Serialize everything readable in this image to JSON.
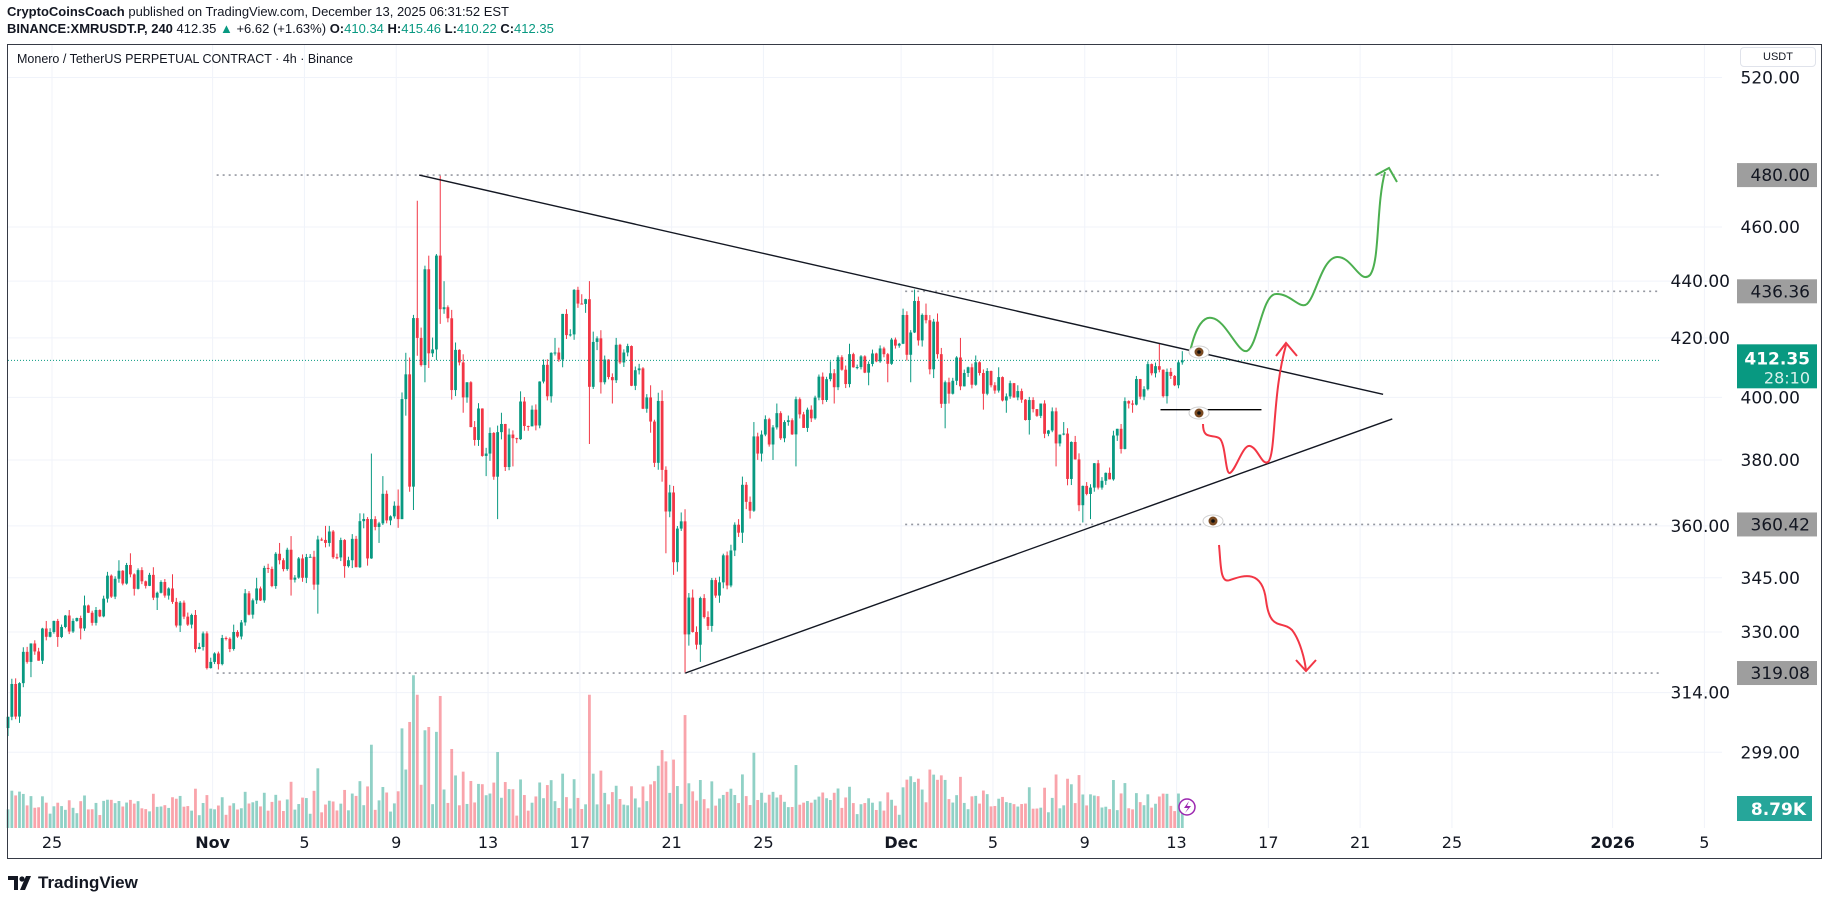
{
  "header": {
    "author": "CryptoCoinsCoach",
    "published": "published on TradingView.com, December 13, 2025 06:31:52 EST",
    "symbol": "BINANCE:XMRUSDT.P, 240",
    "last": "412.35",
    "change": "+6.62 (+1.63%)",
    "o_label": "O:",
    "o": "410.34",
    "h_label": "H:",
    "h": "415.46",
    "l_label": "L:",
    "l": "410.22",
    "c_label": "C:",
    "c": "412.35"
  },
  "legend": "Monero / TetherUS PERPETUAL CONTRACT · 4h · Binance",
  "currency_button": "USDT",
  "brand": "TradingView",
  "colors": {
    "up": "#089981",
    "down": "#f23645",
    "badge": "#9e9e9e",
    "bull_path": "#4caf50",
    "bear_path": "#f23645",
    "volume_badge": "#26a69a"
  },
  "chart_data": {
    "type": "candlestick",
    "interval": "4h",
    "scale": "log",
    "ylim": [
      292,
      525
    ],
    "y_ticks": [
      "520.00",
      "460.00",
      "440.00",
      "420.00",
      "400.00",
      "380.00",
      "360.00",
      "345.00",
      "330.00",
      "314.00",
      "299.00"
    ],
    "x_ticks": [
      {
        "label": "25",
        "date": "2025-10-25"
      },
      {
        "label": "Nov",
        "date": "2025-11-01",
        "bold": true
      },
      {
        "label": "5",
        "date": "2025-11-05"
      },
      {
        "label": "9",
        "date": "2025-11-09"
      },
      {
        "label": "13",
        "date": "2025-11-13"
      },
      {
        "label": "17",
        "date": "2025-11-17"
      },
      {
        "label": "21",
        "date": "2025-11-21"
      },
      {
        "label": "25",
        "date": "2025-11-25"
      },
      {
        "label": "Dec",
        "date": "2025-12-01",
        "bold": true
      },
      {
        "label": "5",
        "date": "2025-12-05"
      },
      {
        "label": "9",
        "date": "2025-12-09"
      },
      {
        "label": "13",
        "date": "2025-12-13"
      },
      {
        "label": "17",
        "date": "2025-12-17"
      },
      {
        "label": "21",
        "date": "2025-12-21"
      },
      {
        "label": "25",
        "date": "2025-12-25"
      },
      {
        "label": "2026",
        "date": "2026-01-01",
        "bold": true
      },
      {
        "label": "5",
        "date": "2026-01-05"
      }
    ],
    "daily": [
      {
        "d": "2025-10-23",
        "o": 305,
        "h": 326,
        "l": 303,
        "c": 322
      },
      {
        "d": "2025-10-24",
        "o": 322,
        "h": 333,
        "l": 318,
        "c": 330
      },
      {
        "d": "2025-10-25",
        "o": 330,
        "h": 336,
        "l": 326,
        "c": 333
      },
      {
        "d": "2025-10-26",
        "o": 333,
        "h": 340,
        "l": 328,
        "c": 336
      },
      {
        "d": "2025-10-27",
        "o": 336,
        "h": 350,
        "l": 334,
        "c": 347
      },
      {
        "d": "2025-10-28",
        "o": 347,
        "h": 352,
        "l": 340,
        "c": 344
      },
      {
        "d": "2025-10-29",
        "o": 344,
        "h": 348,
        "l": 336,
        "c": 340
      },
      {
        "d": "2025-10-30",
        "o": 340,
        "h": 346,
        "l": 330,
        "c": 332
      },
      {
        "d": "2025-10-31",
        "o": 332,
        "h": 336,
        "l": 320,
        "c": 322
      },
      {
        "d": "2025-11-01",
        "o": 322,
        "h": 332,
        "l": 320,
        "c": 330
      },
      {
        "d": "2025-11-02",
        "o": 330,
        "h": 345,
        "l": 328,
        "c": 342
      },
      {
        "d": "2025-11-03",
        "o": 342,
        "h": 355,
        "l": 338,
        "c": 350
      },
      {
        "d": "2025-11-04",
        "o": 350,
        "h": 357,
        "l": 340,
        "c": 345
      },
      {
        "d": "2025-11-05",
        "o": 345,
        "h": 360,
        "l": 335,
        "c": 355
      },
      {
        "d": "2025-11-06",
        "o": 355,
        "h": 360,
        "l": 345,
        "c": 350
      },
      {
        "d": "2025-11-07",
        "o": 350,
        "h": 382,
        "l": 348,
        "c": 362
      },
      {
        "d": "2025-11-08",
        "o": 362,
        "h": 375,
        "l": 355,
        "c": 366
      },
      {
        "d": "2025-11-09",
        "o": 366,
        "h": 470,
        "l": 362,
        "c": 420
      },
      {
        "d": "2025-11-10",
        "o": 420,
        "h": 480,
        "l": 405,
        "c": 430
      },
      {
        "d": "2025-11-11",
        "o": 430,
        "h": 440,
        "l": 395,
        "c": 400
      },
      {
        "d": "2025-11-12",
        "o": 400,
        "h": 405,
        "l": 375,
        "c": 382
      },
      {
        "d": "2025-11-13",
        "o": 382,
        "h": 395,
        "l": 362,
        "c": 388
      },
      {
        "d": "2025-11-14",
        "o": 388,
        "h": 402,
        "l": 378,
        "c": 396
      },
      {
        "d": "2025-11-15",
        "o": 396,
        "h": 420,
        "l": 390,
        "c": 415
      },
      {
        "d": "2025-11-16",
        "o": 415,
        "h": 438,
        "l": 410,
        "c": 432
      },
      {
        "d": "2025-11-17",
        "o": 432,
        "h": 440,
        "l": 385,
        "c": 405
      },
      {
        "d": "2025-11-18",
        "o": 405,
        "h": 420,
        "l": 398,
        "c": 415
      },
      {
        "d": "2025-11-19",
        "o": 415,
        "h": 418,
        "l": 395,
        "c": 400
      },
      {
        "d": "2025-11-20",
        "o": 400,
        "h": 404,
        "l": 352,
        "c": 370
      },
      {
        "d": "2025-11-21",
        "o": 370,
        "h": 372,
        "l": 319,
        "c": 330
      },
      {
        "d": "2025-11-22",
        "o": 330,
        "h": 345,
        "l": 322,
        "c": 340
      },
      {
        "d": "2025-11-23",
        "o": 340,
        "h": 362,
        "l": 338,
        "c": 358
      },
      {
        "d": "2025-11-24",
        "o": 358,
        "h": 392,
        "l": 355,
        "c": 388
      },
      {
        "d": "2025-11-25",
        "o": 388,
        "h": 398,
        "l": 380,
        "c": 392
      },
      {
        "d": "2025-11-26",
        "o": 392,
        "h": 400,
        "l": 378,
        "c": 396
      },
      {
        "d": "2025-11-27",
        "o": 396,
        "h": 412,
        "l": 392,
        "c": 408
      },
      {
        "d": "2025-11-28",
        "o": 408,
        "h": 418,
        "l": 398,
        "c": 410
      },
      {
        "d": "2025-11-29",
        "o": 410,
        "h": 416,
        "l": 404,
        "c": 412
      },
      {
        "d": "2025-11-30",
        "o": 412,
        "h": 420,
        "l": 405,
        "c": 418
      },
      {
        "d": "2025-12-01",
        "o": 418,
        "h": 437,
        "l": 405,
        "c": 428
      },
      {
        "d": "2025-12-02",
        "o": 428,
        "h": 432,
        "l": 390,
        "c": 405
      },
      {
        "d": "2025-12-03",
        "o": 405,
        "h": 420,
        "l": 398,
        "c": 410
      },
      {
        "d": "2025-12-04",
        "o": 410,
        "h": 414,
        "l": 396,
        "c": 404
      },
      {
        "d": "2025-12-05",
        "o": 404,
        "h": 410,
        "l": 395,
        "c": 400
      },
      {
        "d": "2025-12-06",
        "o": 400,
        "h": 404,
        "l": 388,
        "c": 394
      },
      {
        "d": "2025-12-07",
        "o": 394,
        "h": 398,
        "l": 378,
        "c": 388
      },
      {
        "d": "2025-12-08",
        "o": 388,
        "h": 392,
        "l": 361,
        "c": 372
      },
      {
        "d": "2025-12-09",
        "o": 372,
        "h": 380,
        "l": 362,
        "c": 376
      },
      {
        "d": "2025-12-10",
        "o": 376,
        "h": 400,
        "l": 374,
        "c": 398
      },
      {
        "d": "2025-12-11",
        "o": 398,
        "h": 412,
        "l": 395,
        "c": 408
      },
      {
        "d": "2025-12-12",
        "o": 408,
        "h": 418,
        "l": 398,
        "c": 404
      },
      {
        "d": "2025-12-13",
        "o": 404,
        "h": 415.46,
        "l": 403,
        "c": 412.35
      }
    ],
    "levels": [
      {
        "price": 480.0,
        "label": "480.00",
        "from": "2025-11-01"
      },
      {
        "price": 436.36,
        "label": "436.36",
        "from": "2025-12-01"
      },
      {
        "price": 360.42,
        "label": "360.42",
        "from": "2025-12-01"
      },
      {
        "price": 319.08,
        "label": "319.08",
        "from": "2025-11-01"
      }
    ],
    "current": {
      "price": 412.35,
      "label": "412.35",
      "countdown": "28:10"
    },
    "volume": {
      "label": "8.79K"
    },
    "trendlines": [
      {
        "name": "upper",
        "p1": {
          "d": "2025-11-10.0",
          "price": 480
        },
        "p2": {
          "d": "2025-12-22.0",
          "price": 401
        }
      },
      {
        "name": "lower",
        "p1": {
          "d": "2025-11-21.6",
          "price": 319.08
        },
        "p2": {
          "d": "2025-12-22.4",
          "price": 393
        }
      }
    ],
    "support_line": {
      "price": 396,
      "from": "2025-12-12.3",
      "to": "2025-12-16.7"
    }
  }
}
